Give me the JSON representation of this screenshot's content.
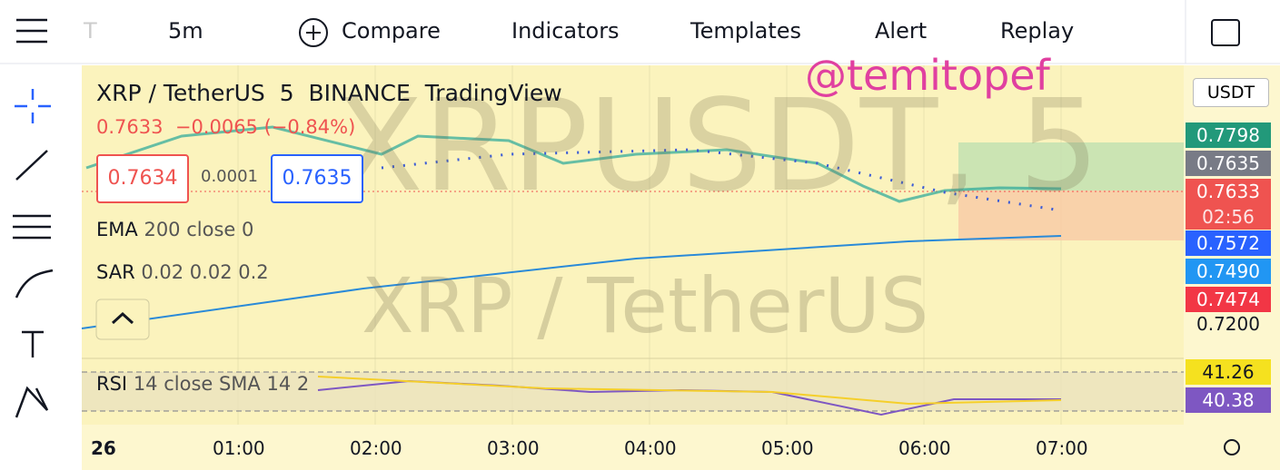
{
  "toolbar": {
    "symbol": "T",
    "interval": "5m",
    "compare": "Compare",
    "indicators": "Indicators",
    "templates": "Templates",
    "alert": "Alert",
    "replay": "Replay"
  },
  "watermark_user": "@temitopef",
  "legend": {
    "symbol": "XRP / TetherUS",
    "interval": "5",
    "exchange": "BINANCE",
    "source": "TradingView",
    "last": "0.7633",
    "change": "−0.0065 (−0.84%)",
    "sell": "0.7634",
    "spread": "0.0001",
    "buy": "0.7635"
  },
  "indicators": [
    {
      "name": "EMA",
      "params": "200 close 0"
    },
    {
      "name": "SAR",
      "params": "0.02 0.02 0.2"
    }
  ],
  "watermark": {
    "ticker": "XRPUSDT, 5",
    "name": "XRP / TetherUS"
  },
  "rsi": {
    "name": "RSI",
    "params": "14 close SMA 14 2"
  },
  "price_scale": {
    "currency": "USDT",
    "labels": [
      {
        "text": "0.7798",
        "color": "#22997a"
      },
      {
        "text": "0.7635",
        "color": "#787b86"
      },
      {
        "text": "0.7633",
        "color": "#ef5350",
        "countdown": "02:56"
      },
      {
        "text": "0.7572",
        "color": "#2962ff"
      },
      {
        "text": "0.7490",
        "color": "#2196f3"
      },
      {
        "text": "0.7474",
        "color": "#f23645"
      },
      {
        "text": "0.7200",
        "color": ""
      }
    ],
    "rsi_labels": [
      {
        "text": "41.26",
        "color": "#f5e11f"
      },
      {
        "text": "40.38",
        "color": "#7e57c2"
      }
    ]
  },
  "time_axis": [
    "26",
    "01:00",
    "02:00",
    "03:00",
    "04:00",
    "05:00",
    "06:00",
    "07:00"
  ]
}
